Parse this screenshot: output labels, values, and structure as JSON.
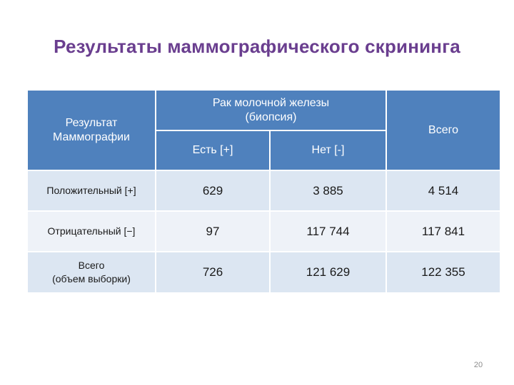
{
  "title": "Результаты маммографического скрининга",
  "table": {
    "header": {
      "result_label_line1": "Результат",
      "result_label_line2": "Маммографии",
      "cancer_label_line1": "Рак молочной железы",
      "cancer_label_line2": "(биопсия)",
      "yes_label": "Есть [+]",
      "no_label": "Нет [-]",
      "total_label": "Всего"
    },
    "rows": [
      {
        "label_line1": "Положительный [+]",
        "label_line2": "",
        "yes": "629",
        "no": "3 885",
        "total": "4 514"
      },
      {
        "label_line1": "Отрицательный [−]",
        "label_line2": "",
        "yes": "97",
        "no": "117 744",
        "total": "117 841"
      },
      {
        "label_line1": "Всего",
        "label_line2": "(объем выборки)",
        "yes": "726",
        "no": "121 629",
        "total": "122 355"
      }
    ]
  },
  "page_number": "20"
}
